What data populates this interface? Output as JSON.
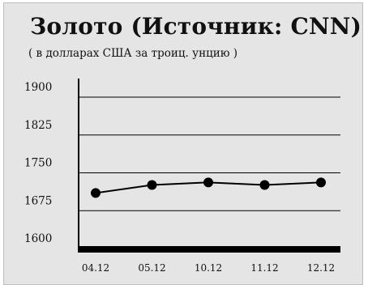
{
  "chart_data": {
    "type": "line",
    "title": "Золото (Источник: CNN)",
    "subtitle": "( в долларах США за троиц. унцию )",
    "xlabel": "",
    "ylabel": "",
    "categories": [
      "04.12",
      "05.12",
      "10.12",
      "11.12",
      "12.12"
    ],
    "values": [
      1710,
      1726,
      1731,
      1726,
      1731
    ],
    "ylim": [
      1600,
      1900
    ],
    "yticks": [
      "1600",
      "1675",
      "1750",
      "1825",
      "1900"
    ],
    "grid": true,
    "legend": "none",
    "colors": {
      "line": "#000000",
      "marker": "#000000",
      "grid": "#000000",
      "background": "#e5e5e5"
    }
  }
}
